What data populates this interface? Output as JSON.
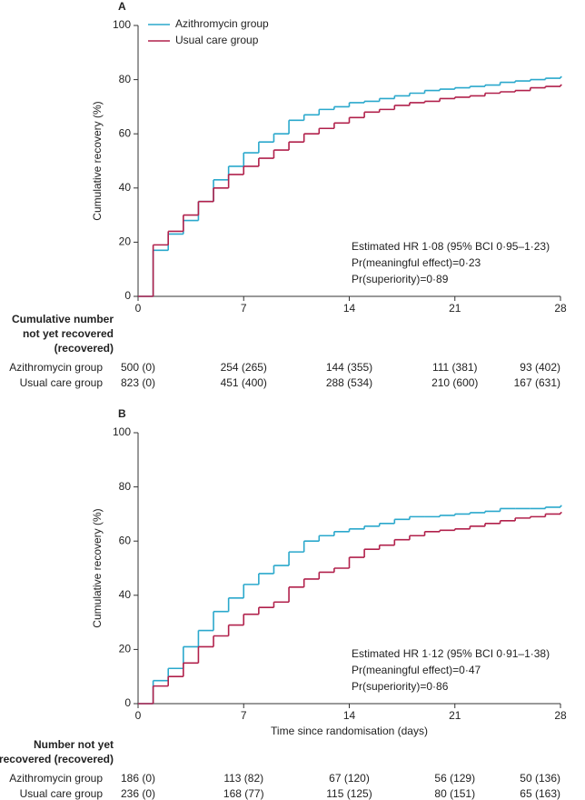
{
  "chart_data": [
    {
      "type": "step",
      "panel": "A",
      "ylabel": "Cumulative recovery (%)",
      "xlim": [
        0,
        28
      ],
      "xticks": [
        0,
        7,
        14,
        21,
        28
      ],
      "ylim": [
        0,
        100
      ],
      "yticks": [
        0,
        20,
        40,
        60,
        80,
        100
      ],
      "legend": true,
      "x": [
        0,
        1,
        2,
        3,
        4,
        5,
        6,
        7,
        8,
        9,
        10,
        11,
        12,
        13,
        14,
        15,
        16,
        17,
        18,
        19,
        20,
        21,
        22,
        23,
        24,
        25,
        26,
        27,
        28
      ],
      "series": [
        {
          "name": "Azithromycin group",
          "color": "#2aa8cc",
          "values": [
            0,
            17,
            23,
            28,
            35,
            43,
            48,
            53,
            57,
            60,
            65,
            67,
            69,
            70,
            71.5,
            72,
            73,
            74,
            75,
            76,
            76.5,
            77,
            77.5,
            78,
            79,
            79.5,
            80,
            80.5,
            81
          ]
        },
        {
          "name": "Usual care group",
          "color": "#b1204b",
          "values": [
            0,
            19,
            24,
            30,
            35,
            40,
            45,
            48,
            51,
            54,
            57,
            60,
            62,
            64,
            66,
            68,
            69,
            70.5,
            71.5,
            72,
            73,
            73.5,
            74,
            75,
            75.5,
            76,
            77,
            77.5,
            78
          ]
        }
      ],
      "annotations": [
        "Estimated HR 1·08 (95% BCI 0·95–1·23)",
        "Pr(meaningful effect)=0·23",
        "Pr(superiority)=0·89"
      ],
      "risk_table": {
        "title": [
          "Cumulative number",
          "not yet recovered",
          "(recovered)"
        ],
        "rows": [
          {
            "label": "Azithromycin group",
            "values": [
              "500 (0)",
              "254 (265)",
              "144 (355)",
              "111 (381)",
              "93 (402)"
            ]
          },
          {
            "label": "Usual care group",
            "values": [
              "823 (0)",
              "451 (400)",
              "288 (534)",
              "210 (600)",
              "167 (631)"
            ]
          }
        ]
      }
    },
    {
      "type": "step",
      "panel": "B",
      "ylabel": "Cumulative recovery (%)",
      "xlabel": "Time since randomisation (days)",
      "xlim": [
        0,
        28
      ],
      "xticks": [
        0,
        7,
        14,
        21,
        28
      ],
      "ylim": [
        0,
        100
      ],
      "yticks": [
        0,
        20,
        40,
        60,
        80,
        100
      ],
      "legend": false,
      "x": [
        0,
        1,
        2,
        3,
        4,
        5,
        6,
        7,
        8,
        9,
        10,
        11,
        12,
        13,
        14,
        15,
        16,
        17,
        18,
        19,
        20,
        21,
        22,
        23,
        24,
        25,
        26,
        27,
        28
      ],
      "series": [
        {
          "color": "#2aa8cc",
          "values": [
            0,
            8.5,
            13,
            21,
            27,
            34,
            39,
            44,
            48,
            51,
            56,
            60,
            62,
            63.5,
            64.5,
            65.5,
            66.5,
            68,
            69,
            69,
            69.5,
            70,
            70.5,
            71,
            72,
            72,
            72,
            72.5,
            73
          ]
        },
        {
          "color": "#b1204b",
          "values": [
            0,
            6.5,
            10,
            15,
            21,
            25,
            29,
            33,
            35.5,
            37.5,
            43,
            46,
            48.5,
            50,
            54,
            57,
            58.5,
            60.5,
            62,
            63.5,
            64,
            64.5,
            65.5,
            66.5,
            67.5,
            68.5,
            69,
            70,
            70.5
          ]
        }
      ],
      "annotations": [
        "Estimated HR 1·12 (95% BCI 0·91–1·38)",
        "Pr(meaningful effect)=0·47",
        "Pr(superiority)=0·86"
      ],
      "risk_table": {
        "title": [
          "Number not yet",
          "recovered (recovered)"
        ],
        "rows": [
          {
            "label": "Azithromycin group",
            "values": [
              "186 (0)",
              "113 (82)",
              "67 (120)",
              "56 (129)",
              "50 (136)"
            ]
          },
          {
            "label": "Usual care group",
            "values": [
              "236 (0)",
              "168 (77)",
              "115 (125)",
              "80 (151)",
              "65 (163)"
            ]
          }
        ]
      }
    }
  ]
}
